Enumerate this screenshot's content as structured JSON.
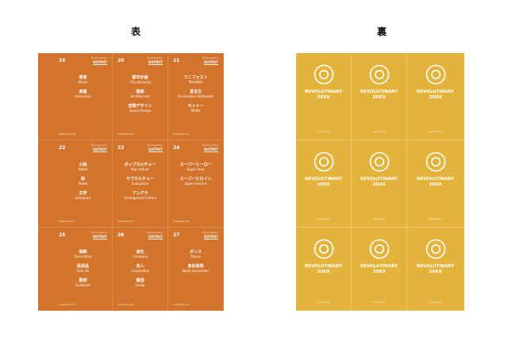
{
  "headings": {
    "front": "表",
    "back": "裏"
  },
  "front_cards": [
    {
      "number": "19",
      "brand": "🛈 emuyoshiro",
      "category": "OUTPUT",
      "footer": "OutputCard 19",
      "words": [
        {
          "jp": "音楽",
          "en": "Music"
        },
        {
          "jp": "楽器",
          "en": "Instrumen"
        }
      ]
    },
    {
      "number": "20",
      "brand": "🛈 emuyoshiro",
      "category": "OUTPUT",
      "footer": "OutputCard 20",
      "words": [
        {
          "jp": "都市計画",
          "en": "City planning"
        },
        {
          "jp": "建築",
          "en": "Architecture"
        },
        {
          "jp": "空間デザイン",
          "en": "Space-Design"
        }
      ]
    },
    {
      "number": "21",
      "brand": "🛈 emuyoshiro",
      "category": "OUTPUT",
      "footer": "OutputCard 21",
      "words": [
        {
          "jp": "マニフェスト",
          "en": "Manifest"
        },
        {
          "jp": "宣言文",
          "en": "Declaration statement"
        },
        {
          "jp": "モットー",
          "en": "Motto"
        }
      ]
    },
    {
      "number": "22",
      "brand": "🛈 emuyoshiro",
      "category": "OUTPUT",
      "footer": "OutputCard 22",
      "words": [
        {
          "jp": "小説",
          "en": "Nobel"
        },
        {
          "jp": "詩",
          "en": "Poem"
        },
        {
          "jp": "文学",
          "en": "Literature"
        }
      ]
    },
    {
      "number": "23",
      "brand": "🛈 emuyoshiro",
      "category": "OUTPUT",
      "footer": "OutputCard 23",
      "words": [
        {
          "jp": "ポップカルチャー",
          "en": "Pop culture"
        },
        {
          "jp": "サブカルチャー",
          "en": "Subculture"
        },
        {
          "jp": "アングラ",
          "en": "Underground culture"
        }
      ]
    },
    {
      "number": "24",
      "brand": "🛈 emuyoshiro",
      "category": "OUTPUT",
      "footer": "OutputCard 24",
      "words": [
        {
          "jp": "スーパーヒーロー",
          "en": "Super hero"
        },
        {
          "jp": "スーパーヒロイン",
          "en": "Super heroine"
        }
      ]
    },
    {
      "number": "25",
      "brand": "🛈 emuyoshiro",
      "category": "OUTPUT",
      "footer": "OutputCard 25",
      "words": [
        {
          "jp": "装飾",
          "en": "Decoration"
        },
        {
          "jp": "民芸品",
          "en": "Folk art"
        },
        {
          "jp": "彫刻",
          "en": "Sculpture"
        }
      ]
    },
    {
      "number": "26",
      "brand": "🛈 emuyoshiro",
      "category": "OUTPUT",
      "footer": "OutputCard 26",
      "words": [
        {
          "jp": "会社",
          "en": "Company"
        },
        {
          "jp": "法人",
          "en": "Corporation"
        },
        {
          "jp": "集団",
          "en": "Group"
        }
      ]
    },
    {
      "number": "27",
      "brand": "🛈 emuyoshiro",
      "category": "OUTPUT",
      "footer": "OutputCard 27",
      "words": [
        {
          "jp": "ダンス",
          "en": "Dance"
        },
        {
          "jp": "身体表現",
          "en": "Body expression"
        }
      ]
    }
  ],
  "back_card": {
    "line1": "REVOLUTINARY",
    "line2": "20XX",
    "footer": "OutputCard",
    "icon": "ring-o-icon"
  },
  "colors": {
    "front": "#d2742b",
    "back": "#e4b33b"
  }
}
